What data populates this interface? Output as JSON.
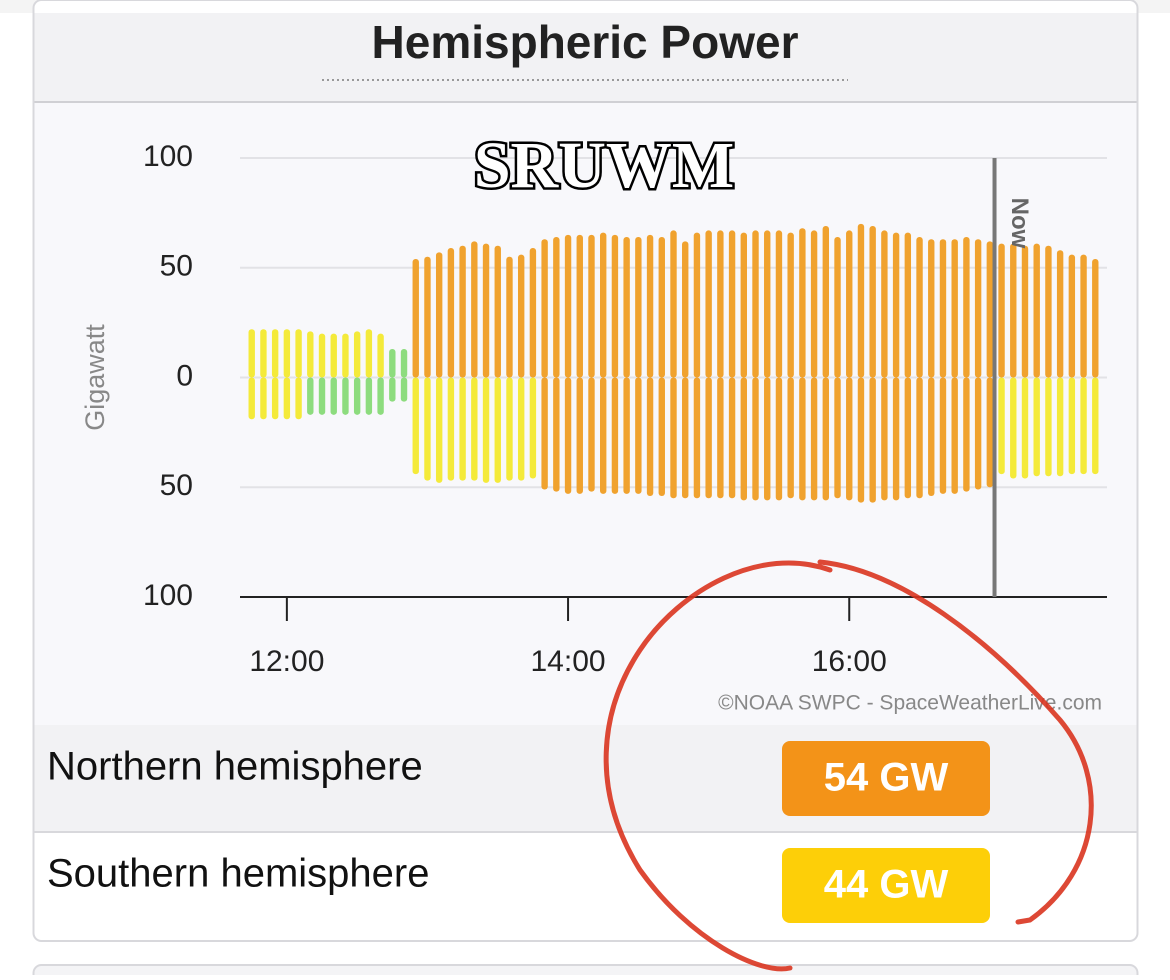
{
  "header": {
    "title": "Hemispheric Power"
  },
  "chart_data": {
    "type": "bar",
    "watermark": "SRUWM",
    "y_label": "Gigawatt",
    "credit": "©NOAA SWPC - SpaceWeatherLive.com",
    "now": {
      "x": "17:02",
      "label": "Now"
    },
    "x": [
      "11:45",
      "11:50",
      "11:55",
      "12:00",
      "12:05",
      "12:10",
      "12:15",
      "12:20",
      "12:25",
      "12:30",
      "12:35",
      "12:40",
      "12:45",
      "12:50",
      "12:55",
      "13:00",
      "13:05",
      "13:10",
      "13:15",
      "13:20",
      "13:25",
      "13:30",
      "13:35",
      "13:40",
      "13:45",
      "13:50",
      "13:55",
      "14:00",
      "14:05",
      "14:10",
      "14:15",
      "14:20",
      "14:25",
      "14:30",
      "14:35",
      "14:40",
      "14:45",
      "14:50",
      "14:55",
      "15:00",
      "15:05",
      "15:10",
      "15:15",
      "15:20",
      "15:25",
      "15:30",
      "15:35",
      "15:40",
      "15:45",
      "15:50",
      "15:55",
      "16:00",
      "16:05",
      "16:10",
      "16:15",
      "16:20",
      "16:25",
      "16:30",
      "16:35",
      "16:40",
      "16:45",
      "16:50",
      "16:55",
      "17:00",
      "17:05",
      "17:10",
      "17:15",
      "17:20",
      "17:25",
      "17:30",
      "17:35",
      "17:40",
      "17:45"
    ],
    "series": [
      {
        "values": [
          22,
          22,
          22,
          22,
          22,
          21,
          20,
          20,
          20,
          21,
          22,
          20,
          13,
          13,
          54,
          55,
          57,
          59,
          60,
          62,
          61,
          60,
          55,
          56,
          59,
          63,
          64,
          65,
          65,
          65,
          66,
          65,
          64,
          64,
          65,
          64,
          67,
          62,
          66,
          67,
          67,
          67,
          66,
          67,
          67,
          67,
          66,
          68,
          67,
          69,
          64,
          67,
          70,
          69,
          67,
          66,
          66,
          64,
          63,
          63,
          63,
          64,
          63,
          62,
          61,
          61,
          60,
          61,
          60,
          58,
          56,
          56,
          54
        ],
        "colors": [
          "#f4ea3a",
          "#f4ea3a",
          "#f4ea3a",
          "#f4ea3a",
          "#f4ea3a",
          "#f4ea3a",
          "#f4ea3a",
          "#f4ea3a",
          "#f4ea3a",
          "#f4ea3a",
          "#f4ea3a",
          "#f4ea3a",
          "#8ddc7e",
          "#8ddc7e",
          "#f0a22e",
          "#f0a22e",
          "#f0a22e",
          "#f0a22e",
          "#f0a22e",
          "#f0a22e",
          "#f0a22e",
          "#f0a22e",
          "#f0a22e",
          "#f0a22e",
          "#f0a22e",
          "#f0a22e",
          "#f0a22e",
          "#f0a22e",
          "#f0a22e",
          "#f0a22e",
          "#f0a22e",
          "#f0a22e",
          "#f0a22e",
          "#f0a22e",
          "#f0a22e",
          "#f0a22e",
          "#f0a22e",
          "#f0a22e",
          "#f0a22e",
          "#f0a22e",
          "#f0a22e",
          "#f0a22e",
          "#f0a22e",
          "#f0a22e",
          "#f0a22e",
          "#f0a22e",
          "#f0a22e",
          "#f0a22e",
          "#f0a22e",
          "#f0a22e",
          "#f0a22e",
          "#f0a22e",
          "#f0a22e",
          "#f0a22e",
          "#f0a22e",
          "#f0a22e",
          "#f0a22e",
          "#f0a22e",
          "#f0a22e",
          "#f0a22e",
          "#f0a22e",
          "#f0a22e",
          "#f0a22e",
          "#f0a22e",
          "#f0a22e",
          "#f0a22e",
          "#f0a22e",
          "#f0a22e",
          "#f0a22e",
          "#f0a22e",
          "#f0a22e",
          "#f0a22e",
          "#f0a22e"
        ]
      },
      {
        "values": [
          -19,
          -19,
          -19,
          -19,
          -19,
          -17,
          -17,
          -17,
          -17,
          -17,
          -17,
          -17,
          -11,
          -11,
          -44,
          -47,
          -48,
          -47,
          -47,
          -47,
          -48,
          -48,
          -47,
          -47,
          -46,
          -51,
          -52,
          -53,
          -53,
          -52,
          -53,
          -53,
          -53,
          -53,
          -54,
          -54,
          -55,
          -55,
          -55,
          -55,
          -55,
          -55,
          -56,
          -56,
          -56,
          -56,
          -55,
          -56,
          -56,
          -56,
          -55,
          -56,
          -57,
          -57,
          -56,
          -56,
          -55,
          -55,
          -54,
          -53,
          -53,
          -52,
          -51,
          -50,
          -44,
          -46,
          -46,
          -45,
          -45,
          -45,
          -44,
          -44,
          -44
        ],
        "colors": [
          "#f4ea3a",
          "#f4ea3a",
          "#f4ea3a",
          "#f4ea3a",
          "#f4ea3a",
          "#8ddc7e",
          "#8ddc7e",
          "#8ddc7e",
          "#8ddc7e",
          "#8ddc7e",
          "#8ddc7e",
          "#8ddc7e",
          "#8ddc7e",
          "#8ddc7e",
          "#f4ea3a",
          "#f4ea3a",
          "#f4ea3a",
          "#f4ea3a",
          "#f4ea3a",
          "#f4ea3a",
          "#f4ea3a",
          "#f4ea3a",
          "#f4ea3a",
          "#f4ea3a",
          "#f4ea3a",
          "#f0a22e",
          "#f0a22e",
          "#f0a22e",
          "#f0a22e",
          "#f0a22e",
          "#f0a22e",
          "#f0a22e",
          "#f0a22e",
          "#f0a22e",
          "#f0a22e",
          "#f0a22e",
          "#f0a22e",
          "#f0a22e",
          "#f0a22e",
          "#f0a22e",
          "#f0a22e",
          "#f0a22e",
          "#f0a22e",
          "#f0a22e",
          "#f0a22e",
          "#f0a22e",
          "#f0a22e",
          "#f0a22e",
          "#f0a22e",
          "#f0a22e",
          "#f0a22e",
          "#f0a22e",
          "#f0a22e",
          "#f0a22e",
          "#f0a22e",
          "#f0a22e",
          "#f0a22e",
          "#f0a22e",
          "#f0a22e",
          "#f0a22e",
          "#f0a22e",
          "#f0a22e",
          "#f0a22e",
          "#f0a22e",
          "#f4ea3a",
          "#f4ea3a",
          "#f4ea3a",
          "#f4ea3a",
          "#f4ea3a",
          "#f4ea3a",
          "#f4ea3a",
          "#f4ea3a",
          "#f4ea3a"
        ]
      }
    ],
    "xlim": [
      "11:40",
      "17:50"
    ],
    "xticks": [
      "12:00",
      "14:00",
      "16:00"
    ],
    "ylim": [
      -100,
      100
    ],
    "yticks": [
      {
        "value": -100,
        "label": "100"
      },
      {
        "value": -50,
        "label": "50"
      },
      0,
      50,
      100
    ],
    "grid": true
  },
  "rows": [
    {
      "label": "Northern hemisphere",
      "badge": "54 GW",
      "color": "#f39318"
    },
    {
      "label": "Southern hemisphere",
      "badge": "44 GW",
      "color": "#fdcf08"
    }
  ]
}
